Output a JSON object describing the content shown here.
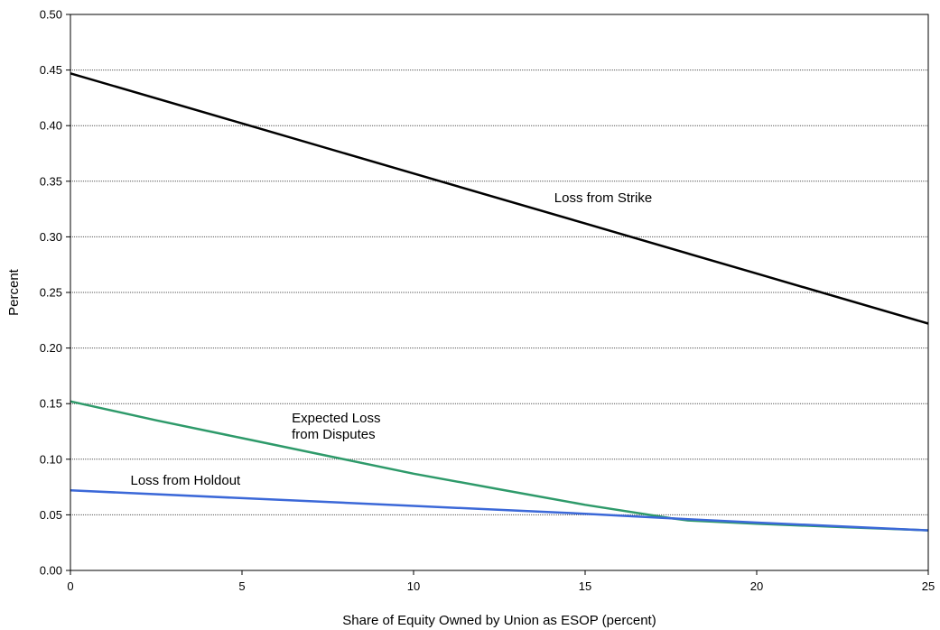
{
  "chart_data": {
    "type": "line",
    "title": "",
    "xlabel": "Share of Equity Owned by Union as ESOP (percent)",
    "ylabel": "Percent",
    "xlim": [
      0,
      25
    ],
    "ylim": [
      0,
      0.5
    ],
    "x_ticks": [
      0,
      5,
      10,
      15,
      20,
      25
    ],
    "x_tick_labels": [
      "0",
      "5",
      "10",
      "15",
      "20",
      "25"
    ],
    "y_ticks": [
      0,
      0.05,
      0.1,
      0.15,
      0.2,
      0.25,
      0.3,
      0.35,
      0.4,
      0.45,
      0.5
    ],
    "y_tick_labels": [
      "0.00",
      "0.05",
      "0.10",
      "0.15",
      "0.20",
      "0.25",
      "0.30",
      "0.35",
      "0.40",
      "0.45",
      "0.50"
    ],
    "grid": "horizontal dotted",
    "legend": "none (inline annotations)",
    "series": [
      {
        "name": "Loss from Strike",
        "color": "#000000",
        "x": [
          0,
          5,
          10,
          15,
          20,
          25
        ],
        "values": [
          0.447,
          0.402,
          0.357,
          0.312,
          0.267,
          0.222
        ]
      },
      {
        "name": "Expected Loss from Disputes",
        "color": "#2e9a6a",
        "x": [
          0,
          2.5,
          5,
          7.5,
          10,
          12.5,
          15,
          17.5,
          18,
          20,
          22.5,
          25
        ],
        "values": [
          0.152,
          0.135,
          0.119,
          0.103,
          0.087,
          0.073,
          0.059,
          0.047,
          0.045,
          0.042,
          0.039,
          0.036
        ]
      },
      {
        "name": "Loss from Holdout",
        "color": "#3b68d8",
        "x": [
          0,
          5,
          10,
          15,
          18,
          20,
          25
        ],
        "values": [
          0.072,
          0.065,
          0.058,
          0.051,
          0.046,
          0.043,
          0.036
        ]
      }
    ],
    "annotations": [
      {
        "lines": [
          "Loss from Strike"
        ],
        "x": 14.1,
        "y": 0.331
      },
      {
        "lines": [
          "Expected Loss",
          "from Disputes"
        ],
        "x": 6.45,
        "y": 0.133
      },
      {
        "lines": [
          "Loss from Holdout"
        ],
        "x": 1.75,
        "y": 0.077
      }
    ]
  }
}
